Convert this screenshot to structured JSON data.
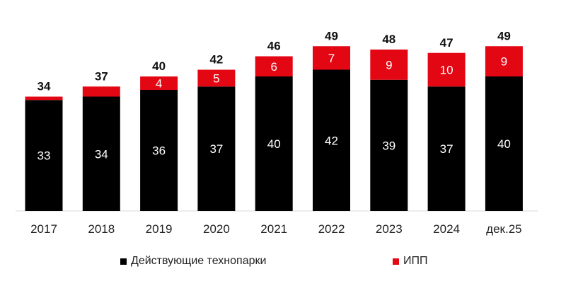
{
  "chart_data": {
    "type": "bar",
    "stacked": true,
    "title": "",
    "xlabel": "",
    "ylabel": "",
    "categories": [
      "2017",
      "2018",
      "2019",
      "2020",
      "2021",
      "2022",
      "2023",
      "2024",
      "дек.25"
    ],
    "series": [
      {
        "name": "Действующие технопарки",
        "color": "#000000",
        "values": [
          33,
          34,
          36,
          37,
          40,
          42,
          39,
          37,
          40
        ],
        "labels": [
          "33",
          "34",
          "36",
          "37",
          "40",
          "42",
          "39",
          "37",
          "40"
        ]
      },
      {
        "name": "ИПП",
        "color": "#e30613",
        "values": [
          1,
          3,
          4,
          5,
          6,
          7,
          9,
          10,
          9
        ],
        "labels": [
          "",
          "",
          "4",
          "5",
          "6",
          "7",
          "9",
          "10",
          "9"
        ]
      }
    ],
    "totals": [
      "34",
      "37",
      "40",
      "42",
      "46",
      "49",
      "48",
      "47",
      "49"
    ],
    "ylim": [
      0,
      49
    ],
    "grid": false,
    "legend_position": "bottom"
  }
}
